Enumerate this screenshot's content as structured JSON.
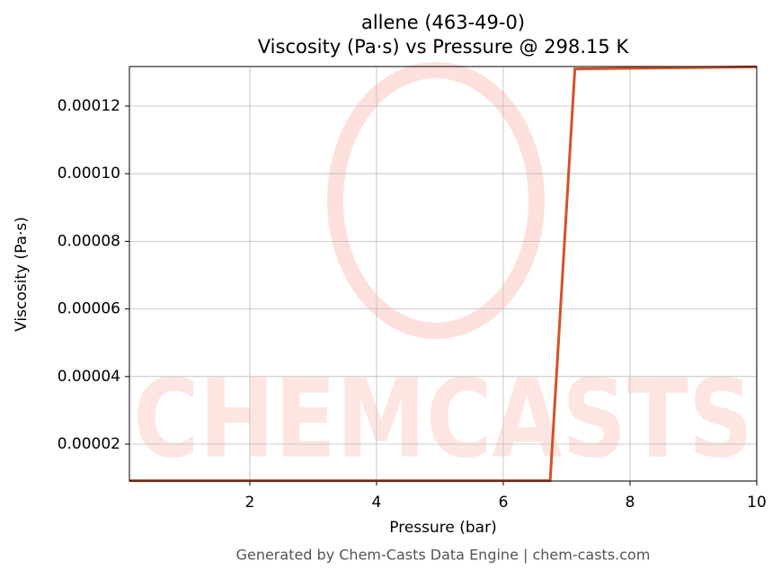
{
  "chart_data": {
    "type": "line",
    "title": "allene (463-49-0)",
    "subtitle": "Viscosity (Pa·s) vs Pressure @ 298.15 K",
    "x_label": "Pressure (bar)",
    "y_label": "Viscosity (Pa·s)",
    "x": [
      0.1,
      6.74,
      7.13,
      10
    ],
    "series": [
      {
        "name": "allene",
        "color": "#d4522a",
        "values": [
          9.2e-06,
          9.2e-06,
          0.000131,
          0.0001316
        ]
      }
    ],
    "xlim": [
      0.1,
      10
    ],
    "xticks": [
      2,
      4,
      6,
      8,
      10
    ],
    "ylim": [
      9.1e-06,
      0.0001317
    ],
    "yticks": [
      2e-05,
      4e-05,
      6e-05,
      8e-05,
      {
        "value": 0.0001,
        "label": "0.00010"
      },
      0.00012
    ],
    "grid": true,
    "legend": false,
    "watermark": "CHEMCASTS",
    "footer": "Generated by Chem-Casts Data Engine | chem-casts.com"
  }
}
